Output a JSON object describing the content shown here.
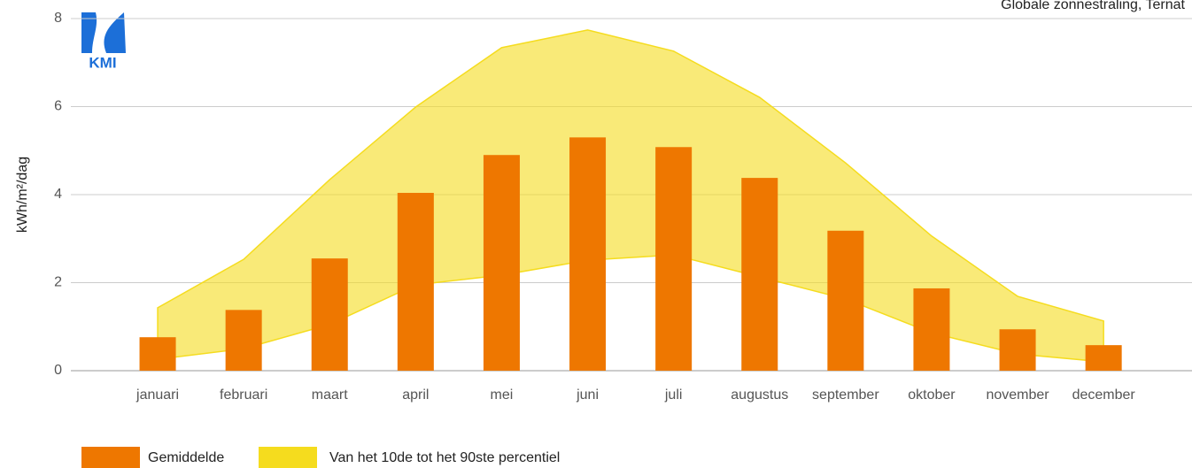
{
  "chart_data": {
    "type": "bar_band",
    "title": "Globale zonnestraling, Ternat",
    "y_label": "kWh/m²/dag",
    "logo_text": "KMI",
    "categories": [
      "januari",
      "februari",
      "maart",
      "april",
      "mei",
      "juni",
      "juli",
      "augustus",
      "september",
      "oktober",
      "november",
      "december"
    ],
    "series": [
      {
        "name": "Gemiddelde",
        "color": "#ee7700",
        "values": [
          0.76,
          1.38,
          2.55,
          4.04,
          4.9,
          5.3,
          5.08,
          4.38,
          3.18,
          1.87,
          0.94,
          0.58
        ]
      },
      {
        "name": "Van het 10de tot het 90ste percentiel",
        "color": "#f5dc1e",
        "low": [
          0.26,
          0.5,
          1.05,
          1.95,
          2.17,
          2.51,
          2.63,
          2.13,
          1.63,
          0.86,
          0.38,
          0.2
        ],
        "high": [
          1.43,
          2.53,
          4.34,
          5.99,
          7.34,
          7.74,
          7.26,
          6.21,
          4.72,
          3.06,
          1.69,
          1.13
        ]
      }
    ],
    "ylim": [
      0,
      8
    ],
    "yticks": [
      0,
      2,
      4,
      6,
      8
    ],
    "grid": true
  }
}
